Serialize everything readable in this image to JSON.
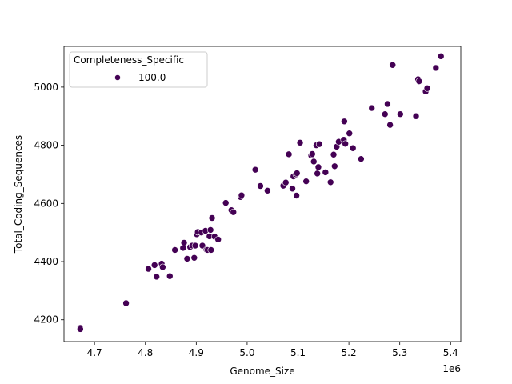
{
  "chart_data": {
    "type": "scatter",
    "title": "",
    "xlabel": "Genome_Size",
    "ylabel": "Total_Coding_Sequences",
    "x_offset_label": "1e6",
    "xlim": [
      4.64,
      5.42
    ],
    "ylim": [
      4125,
      5140
    ],
    "x_ticks": [
      4.7,
      4.8,
      4.9,
      5.0,
      5.1,
      5.2,
      5.3,
      5.4
    ],
    "x_tick_labels": [
      "4.7",
      "4.8",
      "4.9",
      "5.0",
      "5.1",
      "5.2",
      "5.3",
      "5.4"
    ],
    "y_ticks": [
      4200,
      4400,
      4600,
      4800,
      5000
    ],
    "y_tick_labels": [
      "4200",
      "4400",
      "4600",
      "4800",
      "5000"
    ],
    "grid": false,
    "legend": {
      "title": "Completeness_Specific",
      "placement": "top-left",
      "entries": [
        {
          "label": "100.0",
          "color": "#440154"
        }
      ]
    },
    "series": [
      {
        "name": "100.0",
        "color": "#440154",
        "points": [
          [
            4.672,
            4172
          ],
          [
            4.672,
            4168
          ],
          [
            4.762,
            4257
          ],
          [
            4.806,
            4375
          ],
          [
            4.818,
            4388
          ],
          [
            4.822,
            4348
          ],
          [
            4.832,
            4393
          ],
          [
            4.834,
            4381
          ],
          [
            4.848,
            4350
          ],
          [
            4.858,
            4440
          ],
          [
            4.874,
            4447
          ],
          [
            4.876,
            4465
          ],
          [
            4.882,
            4410
          ],
          [
            4.888,
            4450
          ],
          [
            4.892,
            4455
          ],
          [
            4.896,
            4413
          ],
          [
            4.898,
            4455
          ],
          [
            4.901,
            4494
          ],
          [
            4.903,
            4502
          ],
          [
            4.91,
            4500
          ],
          [
            4.912,
            4455
          ],
          [
            4.918,
            4506
          ],
          [
            4.92,
            4441
          ],
          [
            4.922,
            4440
          ],
          [
            4.926,
            4487
          ],
          [
            4.928,
            4509
          ],
          [
            4.929,
            4440
          ],
          [
            4.931,
            4550
          ],
          [
            4.936,
            4486
          ],
          [
            4.943,
            4476
          ],
          [
            4.958,
            4602
          ],
          [
            4.969,
            4577
          ],
          [
            4.973,
            4570
          ],
          [
            4.987,
            4622
          ],
          [
            4.989,
            4628
          ],
          [
            5.016,
            4716
          ],
          [
            5.026,
            4660
          ],
          [
            5.04,
            4644
          ],
          [
            5.071,
            4661
          ],
          [
            5.076,
            4672
          ],
          [
            5.082,
            4769
          ],
          [
            5.089,
            4651
          ],
          [
            5.091,
            4693
          ],
          [
            5.096,
            4700
          ],
          [
            5.097,
            4627
          ],
          [
            5.098,
            4704
          ],
          [
            5.104,
            4809
          ],
          [
            5.116,
            4676
          ],
          [
            5.126,
            4765
          ],
          [
            5.128,
            4770
          ],
          [
            5.131,
            4744
          ],
          [
            5.136,
            4800
          ],
          [
            5.138,
            4703
          ],
          [
            5.14,
            4725
          ],
          [
            5.142,
            4804
          ],
          [
            5.154,
            4707
          ],
          [
            5.164,
            4673
          ],
          [
            5.17,
            4768
          ],
          [
            5.172,
            4728
          ],
          [
            5.176,
            4795
          ],
          [
            5.18,
            4812
          ],
          [
            5.19,
            4819
          ],
          [
            5.191,
            4882
          ],
          [
            5.193,
            4805
          ],
          [
            5.201,
            4841
          ],
          [
            5.208,
            4790
          ],
          [
            5.224,
            4753
          ],
          [
            5.245,
            4928
          ],
          [
            5.271,
            4907
          ],
          [
            5.276,
            4942
          ],
          [
            5.281,
            4870
          ],
          [
            5.286,
            5076
          ],
          [
            5.301,
            4907
          ],
          [
            5.332,
            4900
          ],
          [
            5.336,
            5027
          ],
          [
            5.338,
            5020
          ],
          [
            5.351,
            4985
          ],
          [
            5.354,
            4996
          ],
          [
            5.371,
            5066
          ],
          [
            5.381,
            5106
          ]
        ]
      }
    ]
  }
}
